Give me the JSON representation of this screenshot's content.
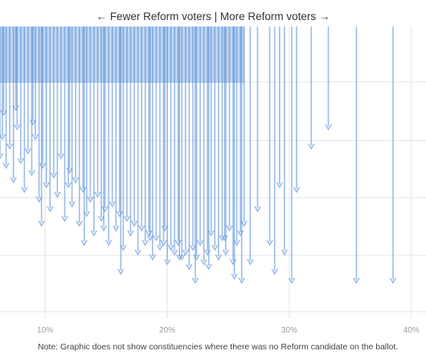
{
  "header": {
    "left_label": "← Fewer Reform voters",
    "separator": "|",
    "right_label": "More Reform voters →"
  },
  "note": "Note: Graphic does not show constituencies where there was no Reform candidate on the ballot.",
  "colors": {
    "arrow": "#4a86d4",
    "grid": "#e4e4e4",
    "tick": "#9a9a9a"
  },
  "chart_data": {
    "type": "scatter",
    "description_of_marks": "arrows",
    "x_ticks": [
      "10%",
      "20%",
      "30%",
      "40%"
    ],
    "x_tick_values": [
      10,
      20,
      30,
      40
    ],
    "xlim": [
      6.3,
      41.2
    ],
    "ylim": [
      0,
      100
    ],
    "arrows": [
      [
        6.3,
        48
      ],
      [
        6.5,
        40
      ],
      [
        6.8,
        52
      ],
      [
        7.1,
        44
      ],
      [
        7.4,
        58
      ],
      [
        7.7,
        36
      ],
      [
        8.0,
        50
      ],
      [
        8.3,
        62
      ],
      [
        8.6,
        46
      ],
      [
        8.9,
        55
      ],
      [
        9.2,
        40
      ],
      [
        9.5,
        66
      ],
      [
        9.8,
        52
      ],
      [
        10.1,
        60
      ],
      [
        10.4,
        70
      ],
      [
        10.7,
        56
      ],
      [
        11.0,
        64
      ],
      [
        11.3,
        48
      ],
      [
        11.6,
        74
      ],
      [
        11.9,
        60
      ],
      [
        12.2,
        68
      ],
      [
        12.5,
        58
      ],
      [
        12.8,
        76
      ],
      [
        13.1,
        62
      ],
      [
        13.4,
        72
      ],
      [
        13.7,
        66
      ],
      [
        14.0,
        80
      ],
      [
        14.3,
        64
      ],
      [
        14.6,
        74
      ],
      [
        14.9,
        70
      ],
      [
        15.2,
        84
      ],
      [
        15.5,
        68
      ],
      [
        15.8,
        78
      ],
      [
        16.1,
        72
      ],
      [
        16.4,
        86
      ],
      [
        16.7,
        74
      ],
      [
        17.0,
        80
      ],
      [
        17.3,
        76
      ],
      [
        17.6,
        88
      ],
      [
        17.9,
        78
      ],
      [
        18.2,
        84
      ],
      [
        18.5,
        80
      ],
      [
        18.8,
        90
      ],
      [
        19.1,
        82
      ],
      [
        19.4,
        86
      ],
      [
        19.7,
        84
      ],
      [
        20.0,
        92
      ],
      [
        20.3,
        86
      ],
      [
        20.6,
        88
      ],
      [
        20.9,
        84
      ],
      [
        21.2,
        90
      ],
      [
        21.5,
        88
      ],
      [
        21.8,
        94
      ],
      [
        22.1,
        86
      ],
      [
        22.4,
        90
      ],
      [
        22.7,
        84
      ],
      [
        23.0,
        92
      ],
      [
        23.3,
        88
      ],
      [
        23.6,
        80
      ],
      [
        23.9,
        86
      ],
      [
        24.2,
        90
      ],
      [
        24.5,
        82
      ],
      [
        24.8,
        88
      ],
      [
        25.1,
        78
      ],
      [
        25.4,
        92
      ],
      [
        25.7,
        84
      ],
      [
        26.0,
        80
      ],
      [
        26.3,
        76
      ],
      [
        6.6,
        30
      ],
      [
        7.6,
        28
      ],
      [
        9.0,
        34
      ],
      [
        9.7,
        76
      ],
      [
        12.0,
        54
      ],
      [
        13.2,
        84
      ],
      [
        14.8,
        78
      ],
      [
        16.2,
        96
      ],
      [
        18.6,
        82
      ],
      [
        19.8,
        78
      ],
      [
        21.0,
        90
      ],
      [
        22.3,
        110
      ],
      [
        23.4,
        94
      ],
      [
        24.7,
        82
      ],
      [
        25.5,
        98
      ],
      [
        26.1,
        104
      ],
      [
        26.8,
        92
      ],
      [
        27.4,
        70
      ],
      [
        28.4,
        84
      ],
      [
        28.8,
        96
      ],
      [
        29.2,
        60
      ],
      [
        29.6,
        88
      ],
      [
        30.2,
        102
      ],
      [
        30.6,
        62
      ],
      [
        31.8,
        44
      ],
      [
        33.2,
        36
      ],
      [
        35.5,
        104
      ],
      [
        38.5,
        110
      ]
    ]
  }
}
